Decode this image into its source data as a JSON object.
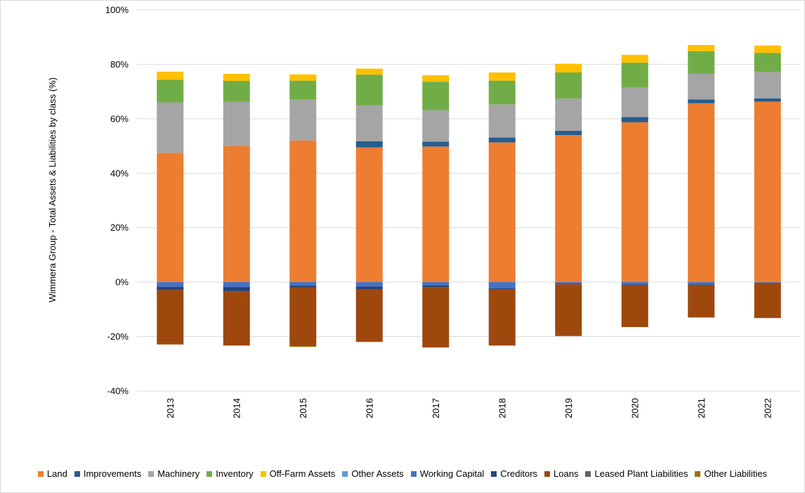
{
  "chart_data": {
    "type": "bar",
    "stacked": true,
    "ylabel": "Wimmera Group - Total Assets & Liabilities by class (%)",
    "ylim": [
      -40,
      100
    ],
    "yticks": [
      -40,
      -20,
      0,
      20,
      40,
      60,
      80,
      100
    ],
    "ytick_labels": [
      "-40%",
      "-20%",
      "0%",
      "20%",
      "40%",
      "60%",
      "80%",
      "100%"
    ],
    "grid": true,
    "legend_position": "bottom",
    "categories": [
      "2013",
      "2014",
      "2015",
      "2016",
      "2017",
      "2018",
      "2019",
      "2020",
      "2021",
      "2022"
    ],
    "series": [
      {
        "name": "Land",
        "color": "#ED7D31",
        "values": [
          47.5,
          50.0,
          52.0,
          49.5,
          49.8,
          51.3,
          54.0,
          58.7,
          65.7,
          66.3
        ]
      },
      {
        "name": "Improvements",
        "color": "#255E91",
        "values": [
          0,
          0,
          0,
          2.2,
          1.8,
          1.8,
          1.6,
          1.9,
          1.4,
          1.2
        ]
      },
      {
        "name": "Machinery",
        "color": "#A5A5A5",
        "values": [
          18.5,
          16.3,
          15.0,
          13.2,
          11.5,
          12.2,
          11.8,
          10.9,
          9.4,
          9.7
        ]
      },
      {
        "name": "Inventory",
        "color": "#70AD47",
        "values": [
          8.3,
          7.6,
          7.0,
          11.3,
          10.5,
          8.7,
          9.6,
          9.1,
          8.3,
          7.0
        ]
      },
      {
        "name": "Off-Farm Assets",
        "color": "#FFC000",
        "values": [
          3.0,
          2.6,
          2.3,
          2.2,
          2.4,
          3.0,
          3.2,
          2.9,
          2.3,
          2.7
        ]
      },
      {
        "name": "Other Assets",
        "color": "#5B9BD5",
        "values": [
          0,
          0,
          0,
          0,
          0,
          0,
          0,
          0,
          0,
          0
        ]
      },
      {
        "name": "Working Capital",
        "color": "#4472C4",
        "values": [
          -1.7,
          -1.8,
          -1.3,
          -1.6,
          -1.2,
          -2.3,
          -0.5,
          -0.8,
          -0.8,
          -0.2
        ]
      },
      {
        "name": "Creditors",
        "color": "#264478",
        "values": [
          -1.2,
          -1.6,
          -0.6,
          -1.1,
          -0.6,
          -0.4,
          -0.3,
          -0.4,
          -0.3,
          -0.1
        ]
      },
      {
        "name": "Loans",
        "color": "#9E480E",
        "values": [
          -20.0,
          -19.9,
          -21.6,
          -19.1,
          -22.2,
          -20.6,
          -19.0,
          -15.3,
          -11.9,
          -12.9
        ]
      },
      {
        "name": "Leased Plant Liabilities",
        "color": "#636363",
        "values": [
          0,
          0,
          0,
          0,
          0,
          0,
          0,
          0,
          0,
          0
        ]
      },
      {
        "name": "Other Liabilities",
        "color": "#997300",
        "values": [
          0,
          0,
          -0.3,
          -0.2,
          0,
          0,
          0,
          0,
          0,
          0
        ]
      }
    ]
  }
}
